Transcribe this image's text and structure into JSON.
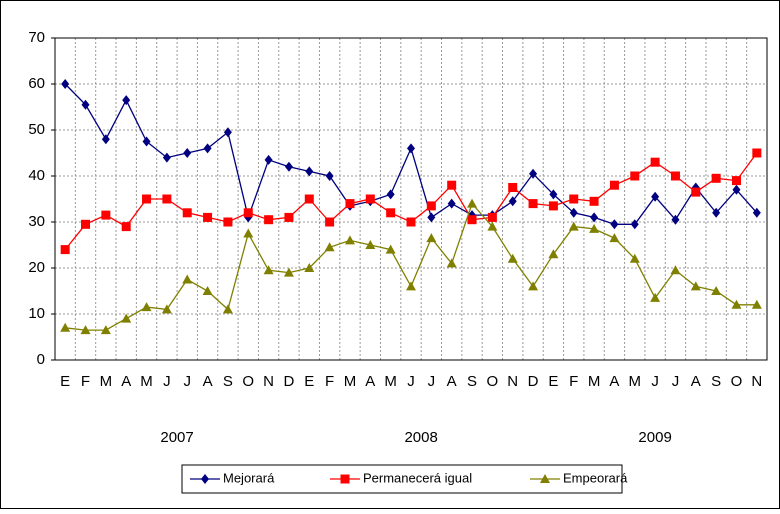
{
  "chart_data": {
    "type": "line",
    "categories": [
      "E",
      "F",
      "M",
      "A",
      "M",
      "J",
      "J",
      "A",
      "S",
      "O",
      "N",
      "D",
      "E",
      "F",
      "M",
      "A",
      "M",
      "J",
      "J",
      "A",
      "S",
      "O",
      "N",
      "D",
      "E",
      "F",
      "M",
      "A",
      "M",
      "J",
      "J",
      "A",
      "S",
      "O",
      "N"
    ],
    "year_labels": [
      "2007",
      "2008",
      "2009"
    ],
    "series": [
      {
        "name": "Mejorará",
        "color": "#000080",
        "marker": "diamond",
        "values": [
          60,
          55.5,
          48,
          56.5,
          47.5,
          44,
          45,
          46,
          49.5,
          31,
          43.5,
          42,
          41,
          40,
          33.5,
          34.5,
          36,
          46,
          31,
          34,
          31.5,
          31.5,
          34.5,
          40.5,
          36,
          32,
          31,
          29.5,
          29.5,
          35.5,
          30.5,
          37.5,
          32,
          37,
          32
        ]
      },
      {
        "name": "Permanecerá igual",
        "color": "#ff0000",
        "marker": "square",
        "values": [
          24,
          29.5,
          31.5,
          29,
          35,
          35,
          32,
          31,
          30,
          32,
          30.5,
          31,
          35,
          30,
          34,
          35,
          32,
          30,
          33.5,
          38,
          30.5,
          31,
          37.5,
          34,
          33.5,
          35,
          34.5,
          38,
          40,
          43,
          40,
          36.5,
          39.5,
          39,
          45
        ]
      },
      {
        "name": "Empeorará",
        "color": "#808000",
        "marker": "triangle",
        "values": [
          7,
          6.5,
          6.5,
          9,
          11.5,
          11,
          17.5,
          15,
          11,
          27.5,
          19.5,
          19,
          20,
          24.5,
          26,
          25,
          24,
          16,
          26.5,
          21,
          34,
          29,
          22,
          16,
          23,
          29,
          28.5,
          26.5,
          22,
          13.5,
          19.5,
          16,
          15,
          12,
          12
        ]
      }
    ],
    "ylim": [
      0,
      70
    ],
    "yticks": [
      0,
      10,
      20,
      30,
      40,
      50,
      60,
      70
    ],
    "grid": true
  }
}
